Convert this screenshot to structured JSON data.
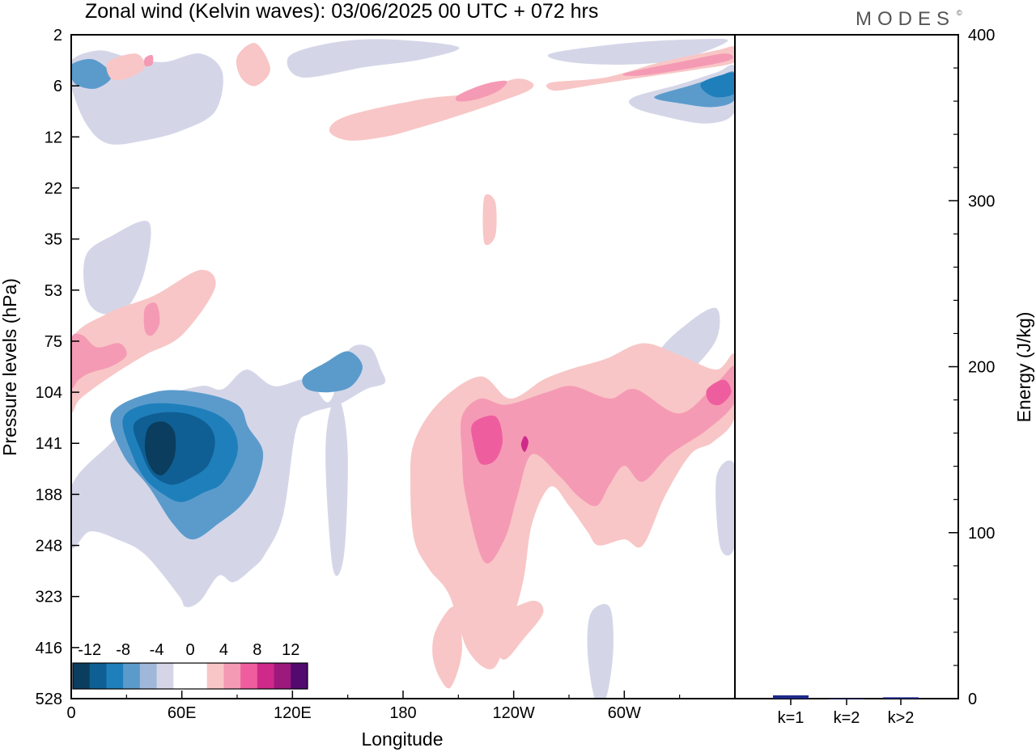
{
  "header": {
    "title": "Zonal wind (Kelvin waves):  03/06/2025  00 UTC  + 072 hrs",
    "brand": "MODES",
    "brand_mark": "©"
  },
  "chart_data": [
    {
      "type": "heatmap",
      "name": "hovmoller",
      "xlabel": "Longitude",
      "ylabel": "Pressure levels (hPa)",
      "x_ticks": [
        "0",
        "60E",
        "120E",
        "180",
        "120W",
        "60W"
      ],
      "x_tick_degrees": [
        0,
        60,
        120,
        180,
        240,
        300
      ],
      "xlim": [
        0,
        360
      ],
      "y_ticks": [
        "2",
        "6",
        "12",
        "22",
        "35",
        "53",
        "75",
        "104",
        "141",
        "188",
        "248",
        "323",
        "416",
        "528"
      ],
      "colorbar": {
        "tick_labels": [
          "-12",
          "-8",
          "-4",
          "0",
          "4",
          "8",
          "12"
        ],
        "colors": [
          "#0b3d5e",
          "#0f5f94",
          "#1f7fbb",
          "#5b9bcc",
          "#9fb8d9",
          "#d4d6e8",
          "#ffffff",
          "#ffffff",
          "#f8c6c6",
          "#f59ab4",
          "#ee5e9f",
          "#cf2a8a",
          "#9b1a7b",
          "#520a6e"
        ]
      },
      "features": [
        {
          "level": "neg1",
          "lon": [
            0,
            22,
            45,
            70,
            82,
            95,
            110,
            128,
            140,
            150,
            162,
            168,
            170,
            160,
            145,
            130,
            122,
            115,
            105,
            98,
            88,
            80,
            70,
            62,
            58,
            40,
            25,
            10,
            0
          ],
          "lev": [
            180,
            140,
            110,
            100,
            102,
            90,
            100,
            96,
            110,
            80,
            78,
            90,
            98,
            102,
            112,
            118,
            130,
            210,
            260,
            280,
            300,
            290,
            330,
            340,
            320,
            260,
            240,
            230,
            250
          ]
        },
        {
          "level": "neg2",
          "lon": [
            22,
            45,
            68,
            90,
            96,
            104,
            100,
            92,
            80,
            66,
            55,
            42,
            28
          ],
          "lev": [
            118,
            104,
            104,
            112,
            128,
            148,
            178,
            200,
            220,
            240,
            220,
            180,
            150
          ]
        },
        {
          "level": "neg3",
          "lon": [
            28,
            40,
            60,
            78,
            88,
            90,
            82,
            72,
            60,
            50,
            40,
            33
          ],
          "lev": [
            122,
            112,
            112,
            118,
            130,
            150,
            176,
            186,
            196,
            188,
            172,
            150
          ]
        },
        {
          "level": "neg4",
          "lon": [
            34,
            46,
            62,
            74,
            78,
            74,
            64,
            54,
            44,
            38
          ],
          "lev": [
            126,
            118,
            118,
            126,
            140,
            160,
            172,
            178,
            168,
            148
          ]
        },
        {
          "level": "neg5",
          "lon": [
            42,
            50,
            56,
            56,
            50,
            44,
            40
          ],
          "lev": [
            128,
            124,
            132,
            152,
            168,
            164,
            146
          ]
        },
        {
          "level": "neg2",
          "lon": [
            126,
            138,
            150,
            158,
            152,
            140,
            128
          ],
          "lev": [
            94,
            86,
            80,
            88,
            100,
            104,
            102
          ]
        },
        {
          "level": "neg1",
          "lon": [
            0,
            15,
            30,
            50,
            70,
            82,
            78,
            60,
            40,
            20,
            8,
            0
          ],
          "lev": [
            3.5,
            2.8,
            3.2,
            3.6,
            3.0,
            4.5,
            8.5,
            11,
            12.5,
            13,
            10,
            6
          ]
        },
        {
          "level": "neg2",
          "lon": [
            0,
            12,
            22,
            14,
            4,
            0
          ],
          "lev": [
            3.8,
            3.4,
            4.8,
            6.2,
            6.0,
            5
          ]
        },
        {
          "level": "neg1",
          "lon": [
            8,
            22,
            42,
            40,
            30,
            16,
            8
          ],
          "lev": [
            40,
            34,
            30,
            45,
            60,
            62,
            55
          ]
        },
        {
          "level": "neg1",
          "lon": [
            118,
            140,
            170,
            210,
            190,
            160,
            125
          ],
          "lev": [
            3.2,
            2.4,
            2.2,
            2.6,
            3.4,
            4.0,
            5.0
          ]
        },
        {
          "level": "neg1",
          "lon": [
            260,
            300,
            340,
            356,
            330,
            300,
            270
          ],
          "lev": [
            3.0,
            2.4,
            2.2,
            2.3,
            3.4,
            3.8,
            3.6
          ]
        },
        {
          "level": "neg1",
          "lon": [
            305,
            330,
            350,
            360,
            360,
            345,
            320,
            305
          ],
          "lev": [
            7.0,
            5.8,
            4.5,
            4.0,
            8.5,
            10.0,
            9.0,
            8.0
          ]
        },
        {
          "level": "neg2",
          "lon": [
            318,
            335,
            350,
            360,
            360,
            348,
            330,
            318
          ],
          "lev": [
            6.8,
            6.0,
            5.0,
            4.5,
            7.2,
            8.0,
            7.6,
            7.2
          ]
        },
        {
          "level": "neg3",
          "lon": [
            342,
            352,
            360,
            360,
            350,
            343
          ],
          "lev": [
            5.6,
            4.8,
            4.6,
            6.6,
            7.0,
            6.4
          ]
        },
        {
          "level": "neg1",
          "lon": [
            318,
            335,
            350,
            350,
            335,
            318
          ],
          "lev": [
            82,
            66,
            60,
            74,
            92,
            108
          ]
        },
        {
          "level": "neg1",
          "lon": [
            350,
            360,
            360,
            352
          ],
          "lev": [
            170,
            160,
            248,
            250
          ]
        },
        {
          "level": "neg1",
          "lon": [
            282,
            292,
            294,
            290,
            284,
            280
          ],
          "lev": [
            350,
            340,
            420,
            528,
            528,
            420
          ]
        },
        {
          "level": "neg1",
          "lon": [
            140,
            146,
            150,
            148,
            142,
            138
          ],
          "lev": [
            118,
            110,
            150,
            260,
            280,
            160
          ]
        },
        {
          "level": "pos1",
          "lon": [
            0,
            20,
            45,
            70,
            78,
            60,
            40,
            20,
            5,
            0
          ],
          "lev": [
            75,
            62,
            55,
            45,
            52,
            72,
            82,
            95,
            108,
            115
          ]
        },
        {
          "level": "pos2",
          "lon": [
            0,
            6,
            14,
            26,
            30,
            22,
            10,
            4,
            0
          ],
          "lev": [
            74,
            72,
            78,
            76,
            82,
            88,
            92,
            96,
            100
          ]
        },
        {
          "level": "pos2",
          "lon": [
            40,
            46,
            48,
            44,
            40
          ],
          "lev": [
            60,
            58,
            66,
            72,
            70
          ]
        },
        {
          "level": "pos1",
          "lon": [
            186,
            200,
            222,
            238,
            256,
            270,
            290,
            310,
            330,
            350,
            360,
            360,
            348,
            336,
            322,
            310,
            300,
            286,
            280,
            270,
            260,
            250,
            245,
            236,
            228,
            215,
            205,
            194,
            186,
            184
          ],
          "lev": [
            140,
            110,
            94,
            108,
            96,
            90,
            84,
            76,
            82,
            90,
            82,
            120,
            140,
            150,
            190,
            248,
            240,
            248,
            230,
            200,
            180,
            220,
            300,
            400,
            460,
            420,
            320,
            280,
            240,
            180
          ]
        },
        {
          "level": "pos2",
          "lon": [
            212,
            222,
            236,
            258,
            272,
            292,
            306,
            330,
            350,
            360,
            360,
            345,
            325,
            310,
            300,
            292,
            285,
            275,
            265,
            250,
            242,
            235,
            224,
            214,
            212
          ],
          "lev": [
            120,
            108,
            112,
            104,
            100,
            108,
            102,
            118,
            98,
            88,
            110,
            130,
            150,
            175,
            160,
            178,
            200,
            190,
            170,
            150,
            190,
            240,
            270,
            190,
            150
          ]
        },
        {
          "level": "pos3",
          "lon": [
            218,
            230,
            234,
            230,
            222,
            218
          ],
          "lev": [
            125,
            120,
            138,
            155,
            158,
            140
          ]
        },
        {
          "level": "pos3",
          "lon": [
            345,
            354,
            358,
            352,
            346
          ],
          "lev": [
            102,
            96,
            104,
            112,
            110
          ]
        },
        {
          "level": "pos4",
          "lon": [
            246,
            248,
            246,
            244
          ],
          "lev": [
            135,
            140,
            148,
            142
          ]
        },
        {
          "level": "pos1",
          "lon": [
            198,
            208,
            212,
            206,
            200,
            196
          ],
          "lev": [
            380,
            340,
            420,
            500,
            480,
            430
          ]
        },
        {
          "level": "pos1",
          "lon": [
            232,
            250,
            256,
            245,
            235,
            230
          ],
          "lev": [
            360,
            330,
            350,
            400,
            440,
            410
          ]
        },
        {
          "level": "pos1",
          "lon": [
            150,
            190,
            220,
            240,
            250,
            248,
            230,
            210,
            190,
            170,
            150,
            140
          ],
          "lev": [
            9.0,
            7.2,
            6.6,
            5.2,
            5.6,
            6.4,
            7.6,
            9.0,
            10.5,
            12.0,
            12.5,
            11.0
          ]
        },
        {
          "level": "pos2",
          "lon": [
            210,
            224,
            236,
            232,
            220,
            210
          ],
          "lev": [
            6.8,
            5.8,
            5.4,
            6.4,
            7.2,
            7.4
          ]
        },
        {
          "level": "pos1",
          "lon": [
            260,
            290,
            320,
            350,
            360,
            360,
            340,
            310,
            280,
            262
          ],
          "lev": [
            5.6,
            5.0,
            3.6,
            2.8,
            2.6,
            3.6,
            4.2,
            5.0,
            6.0,
            6.4
          ]
        },
        {
          "level": "pos2",
          "lon": [
            300,
            330,
            354,
            358,
            340,
            310
          ],
          "lev": [
            4.6,
            3.6,
            3.0,
            3.4,
            4.0,
            4.8
          ]
        },
        {
          "level": "pos1",
          "lon": [
            20,
            35,
            40,
            32,
            22
          ],
          "lev": [
            3.6,
            3.0,
            4.0,
            5.0,
            5.2
          ]
        },
        {
          "level": "pos2",
          "lon": [
            40,
            44,
            44,
            40
          ],
          "lev": [
            3.3,
            3.1,
            3.8,
            3.9
          ]
        },
        {
          "level": "pos1",
          "lon": [
            90,
            100,
            108,
            100,
            92
          ],
          "lev": [
            3.2,
            2.4,
            4.2,
            6.0,
            5.0
          ]
        },
        {
          "level": "pos1",
          "lon": [
            224,
            230,
            230,
            224
          ],
          "lev": [
            24,
            25,
            34,
            36
          ]
        }
      ]
    },
    {
      "type": "bar",
      "name": "energy",
      "ylabel": "Energy (J/kg)",
      "categories": [
        "k=1",
        "k=2",
        "k>2"
      ],
      "values": [
        2.0,
        0.1,
        0.8
      ],
      "ylim": [
        0,
        400
      ],
      "y_ticks": [
        "0",
        "100",
        "200",
        "300",
        "400"
      ],
      "bar_color": "#1f2a8a"
    }
  ]
}
